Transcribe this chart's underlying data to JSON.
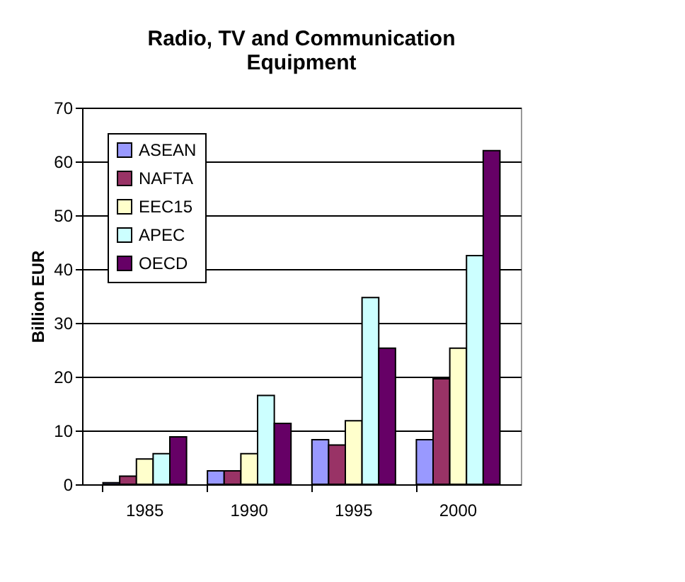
{
  "chart_data": {
    "type": "bar",
    "title": "Radio, TV and Communication Equipment",
    "ylabel": "Billion EUR",
    "categories": [
      "1985",
      "1990",
      "1995",
      "2000"
    ],
    "series": [
      {
        "name": "ASEAN",
        "color": "#9999ff",
        "values": [
          0.3,
          2.5,
          8.3,
          8.3
        ]
      },
      {
        "name": "NAFTA",
        "color": "#993366",
        "values": [
          1.5,
          2.5,
          7.3,
          19.6
        ]
      },
      {
        "name": "EEC15",
        "color": "#ffffcc",
        "values": [
          4.7,
          5.7,
          11.8,
          25.3
        ]
      },
      {
        "name": "APEC",
        "color": "#ccffff",
        "values": [
          5.7,
          16.5,
          34.7,
          42.5
        ]
      },
      {
        "name": "OECD",
        "color": "#660066",
        "values": [
          8.8,
          11.3,
          25.3,
          62
        ]
      }
    ],
    "ylim": [
      0,
      70
    ],
    "yticks": [
      0,
      10,
      20,
      30,
      40,
      50,
      60,
      70
    ],
    "grid": "y",
    "legend": "top left"
  }
}
